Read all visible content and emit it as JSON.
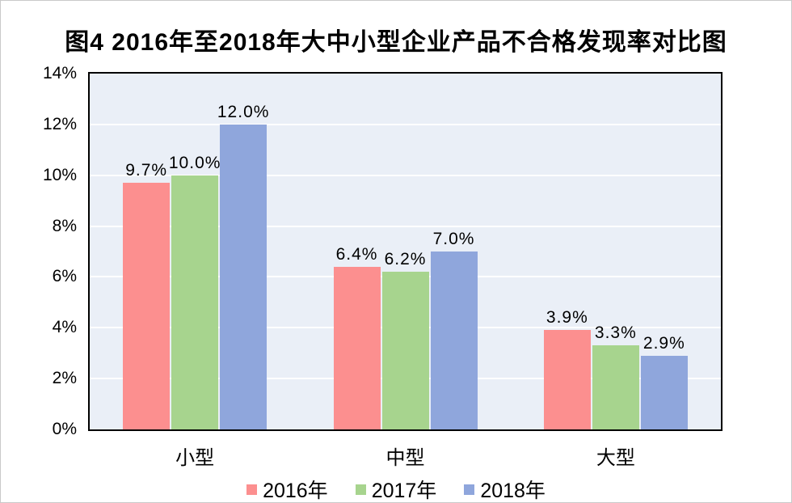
{
  "title": "图4 2016年至2018年大中小型企业产品不合格发现率对比图",
  "chart_data": {
    "type": "bar",
    "title": "图4 2016年至2018年大中小型企业产品不合格发现率对比图",
    "categories": [
      "小型",
      "中型",
      "大型"
    ],
    "series": [
      {
        "name": "2016年",
        "color": "#FC8F8F",
        "values": [
          9.7,
          6.4,
          3.9
        ],
        "labels": [
          "9.7%",
          "6.4%",
          "3.9%"
        ]
      },
      {
        "name": "2017年",
        "color": "#A7D48E",
        "values": [
          10.0,
          6.2,
          3.3
        ],
        "labels": [
          "10.0%",
          "6.2%",
          "3.3%"
        ]
      },
      {
        "name": "2018年",
        "color": "#8FA6DC",
        "values": [
          12.0,
          7.0,
          2.9
        ],
        "labels": [
          "12.0%",
          "7.0%",
          "2.9%"
        ]
      }
    ],
    "xlabel": "",
    "ylabel": "",
    "ylim": [
      0,
      14
    ],
    "ytick_step": 2,
    "ytick_labels": [
      "0%",
      "2%",
      "4%",
      "6%",
      "8%",
      "10%",
      "12%",
      "14%"
    ],
    "grid": true,
    "gridline_color": "#FFFFFF",
    "plot_background": "#EAEFF7",
    "legend_position": "bottom"
  }
}
